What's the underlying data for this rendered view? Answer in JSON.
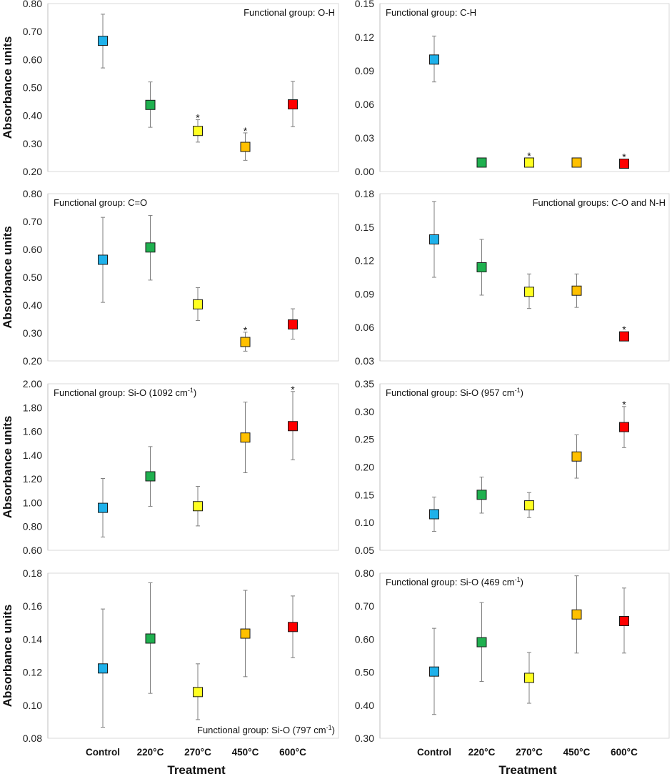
{
  "figure": {
    "ylabel": "Absorbance units",
    "xlabel": "Treatment",
    "categories": [
      "Control",
      "220°C",
      "270°C",
      "450°C",
      "600°C"
    ],
    "colors": [
      "#1fb1ea",
      "#1fb04f",
      "#ffff22",
      "#ffc000",
      "#ff0000"
    ]
  },
  "chart_data": [
    {
      "type": "scatter",
      "title": "Functional group: O-H",
      "title_parts": [
        "Functional group: O-H"
      ],
      "annotation_position": "top-right",
      "ylim": [
        0.2,
        0.8
      ],
      "yticks": [
        "0.20",
        "0.30",
        "0.40",
        "0.50",
        "0.60",
        "0.70",
        "0.80"
      ],
      "show_ylabel": true,
      "show_xlabels": false,
      "values": [
        0.667,
        0.438,
        0.345,
        0.288,
        0.44
      ],
      "err_hi": [
        0.762,
        0.52,
        0.385,
        0.338,
        0.522
      ],
      "err_lo": [
        0.57,
        0.358,
        0.305,
        0.24,
        0.36
      ],
      "stars": [
        false,
        false,
        true,
        true,
        false
      ]
    },
    {
      "type": "scatter",
      "title": "Functional group: C-H",
      "title_parts": [
        "Functional group: C-H"
      ],
      "annotation_position": "top-left",
      "ylim": [
        0,
        0.15
      ],
      "yticks": [
        "0.00",
        "0.03",
        "0.06",
        "0.09",
        "0.12",
        "0.15"
      ],
      "show_ylabel": false,
      "show_xlabels": false,
      "values": [
        0.1,
        0.008,
        0.008,
        0.008,
        0.007
      ],
      "err_hi": [
        0.121,
        0.008,
        0.008,
        0.008,
        0.007
      ],
      "err_lo": [
        0.08,
        0.008,
        0.008,
        0.008,
        0.007
      ],
      "stars": [
        false,
        false,
        true,
        false,
        true
      ]
    },
    {
      "type": "scatter",
      "title": "Functional group: C=O",
      "title_parts": [
        "Functional group: C=O"
      ],
      "annotation_position": "top-left",
      "ylim": [
        0.2,
        0.8
      ],
      "yticks": [
        "0.20",
        "0.30",
        "0.40",
        "0.50",
        "0.60",
        "0.70",
        "0.80"
      ],
      "show_ylabel": true,
      "show_xlabels": false,
      "values": [
        0.563,
        0.607,
        0.403,
        0.268,
        0.331
      ],
      "err_hi": [
        0.715,
        0.722,
        0.463,
        0.303,
        0.387
      ],
      "err_lo": [
        0.41,
        0.49,
        0.345,
        0.235,
        0.278
      ],
      "stars": [
        false,
        false,
        false,
        true,
        false
      ]
    },
    {
      "type": "scatter",
      "title": "Functional groups: C-O and N-H",
      "title_parts": [
        "Functional groups: C-O and N-H"
      ],
      "annotation_position": "top-right",
      "ylim": [
        0.03,
        0.18
      ],
      "yticks": [
        "0.03",
        "0.06",
        "0.09",
        "0.12",
        "0.15",
        "0.18"
      ],
      "show_ylabel": false,
      "show_xlabels": false,
      "values": [
        0.139,
        0.114,
        0.092,
        0.093,
        0.052
      ],
      "err_hi": [
        0.173,
        0.139,
        0.108,
        0.108,
        0.055
      ],
      "err_lo": [
        0.105,
        0.089,
        0.077,
        0.078,
        0.048
      ],
      "stars": [
        false,
        false,
        false,
        false,
        true
      ]
    },
    {
      "type": "scatter",
      "title": "Functional group: Si-O (1092 cm-1)",
      "title_parts": [
        "Functional group: Si-O (1092 cm",
        "-1",
        ")"
      ],
      "annotation_position": "top-left",
      "ylim": [
        0.6,
        2.0
      ],
      "yticks": [
        "0.60",
        "0.80",
        "1.00",
        "1.20",
        "1.40",
        "1.60",
        "1.80",
        "2.00"
      ],
      "show_ylabel": true,
      "show_xlabels": false,
      "values": [
        0.957,
        1.222,
        0.971,
        1.548,
        1.644
      ],
      "err_hi": [
        1.204,
        1.472,
        1.138,
        1.846,
        1.935
      ],
      "err_lo": [
        0.712,
        0.97,
        0.805,
        1.252,
        1.36
      ],
      "stars": [
        false,
        false,
        false,
        false,
        true
      ]
    },
    {
      "type": "scatter",
      "title": "Functional group: Si-O (957 cm-1)",
      "title_parts": [
        "Functional group: Si-O (957 cm",
        "-1",
        ")"
      ],
      "annotation_position": "top-left",
      "ylim": [
        0.05,
        0.35
      ],
      "yticks": [
        "0.05",
        "0.10",
        "0.15",
        "0.20",
        "0.25",
        "0.30",
        "0.35"
      ],
      "show_ylabel": false,
      "show_xlabels": false,
      "values": [
        0.115,
        0.15,
        0.131,
        0.219,
        0.272
      ],
      "err_hi": [
        0.146,
        0.182,
        0.154,
        0.258,
        0.309
      ],
      "err_lo": [
        0.084,
        0.117,
        0.109,
        0.18,
        0.235
      ],
      "stars": [
        false,
        false,
        false,
        false,
        true
      ]
    },
    {
      "type": "scatter",
      "title": "Functional group: Si-O (797 cm-1)",
      "title_parts": [
        "Functional group: Si-O (797 cm",
        "-1",
        ")"
      ],
      "annotation_position": "bottom-right",
      "ylim": [
        0.08,
        0.18
      ],
      "yticks": [
        "0.08",
        "0.10",
        "0.12",
        "0.14",
        "0.16",
        "0.18"
      ],
      "show_ylabel": true,
      "show_xlabels": true,
      "values": [
        0.1223,
        0.1404,
        0.108,
        0.1434,
        0.1474
      ],
      "err_hi": [
        0.1583,
        0.1742,
        0.1251,
        0.1696,
        0.1662
      ],
      "err_lo": [
        0.0867,
        0.1072,
        0.0913,
        0.1173,
        0.1288
      ],
      "stars": [
        false,
        false,
        false,
        false,
        false
      ]
    },
    {
      "type": "scatter",
      "title": "Functional group: Si-O (469 cm-1)",
      "title_parts": [
        "Functional group: Si-O (469 cm",
        "-1",
        ")"
      ],
      "annotation_position": "top-left",
      "ylim": [
        0.3,
        0.8
      ],
      "yticks": [
        "0.30",
        "0.40",
        "0.50",
        "0.60",
        "0.70",
        "0.80"
      ],
      "show_ylabel": false,
      "show_xlabels": true,
      "values": [
        0.502,
        0.591,
        0.483,
        0.675,
        0.655
      ],
      "err_hi": [
        0.633,
        0.711,
        0.56,
        0.792,
        0.755
      ],
      "err_lo": [
        0.372,
        0.472,
        0.406,
        0.558,
        0.558
      ],
      "stars": [
        false,
        false,
        false,
        false,
        false
      ]
    }
  ]
}
